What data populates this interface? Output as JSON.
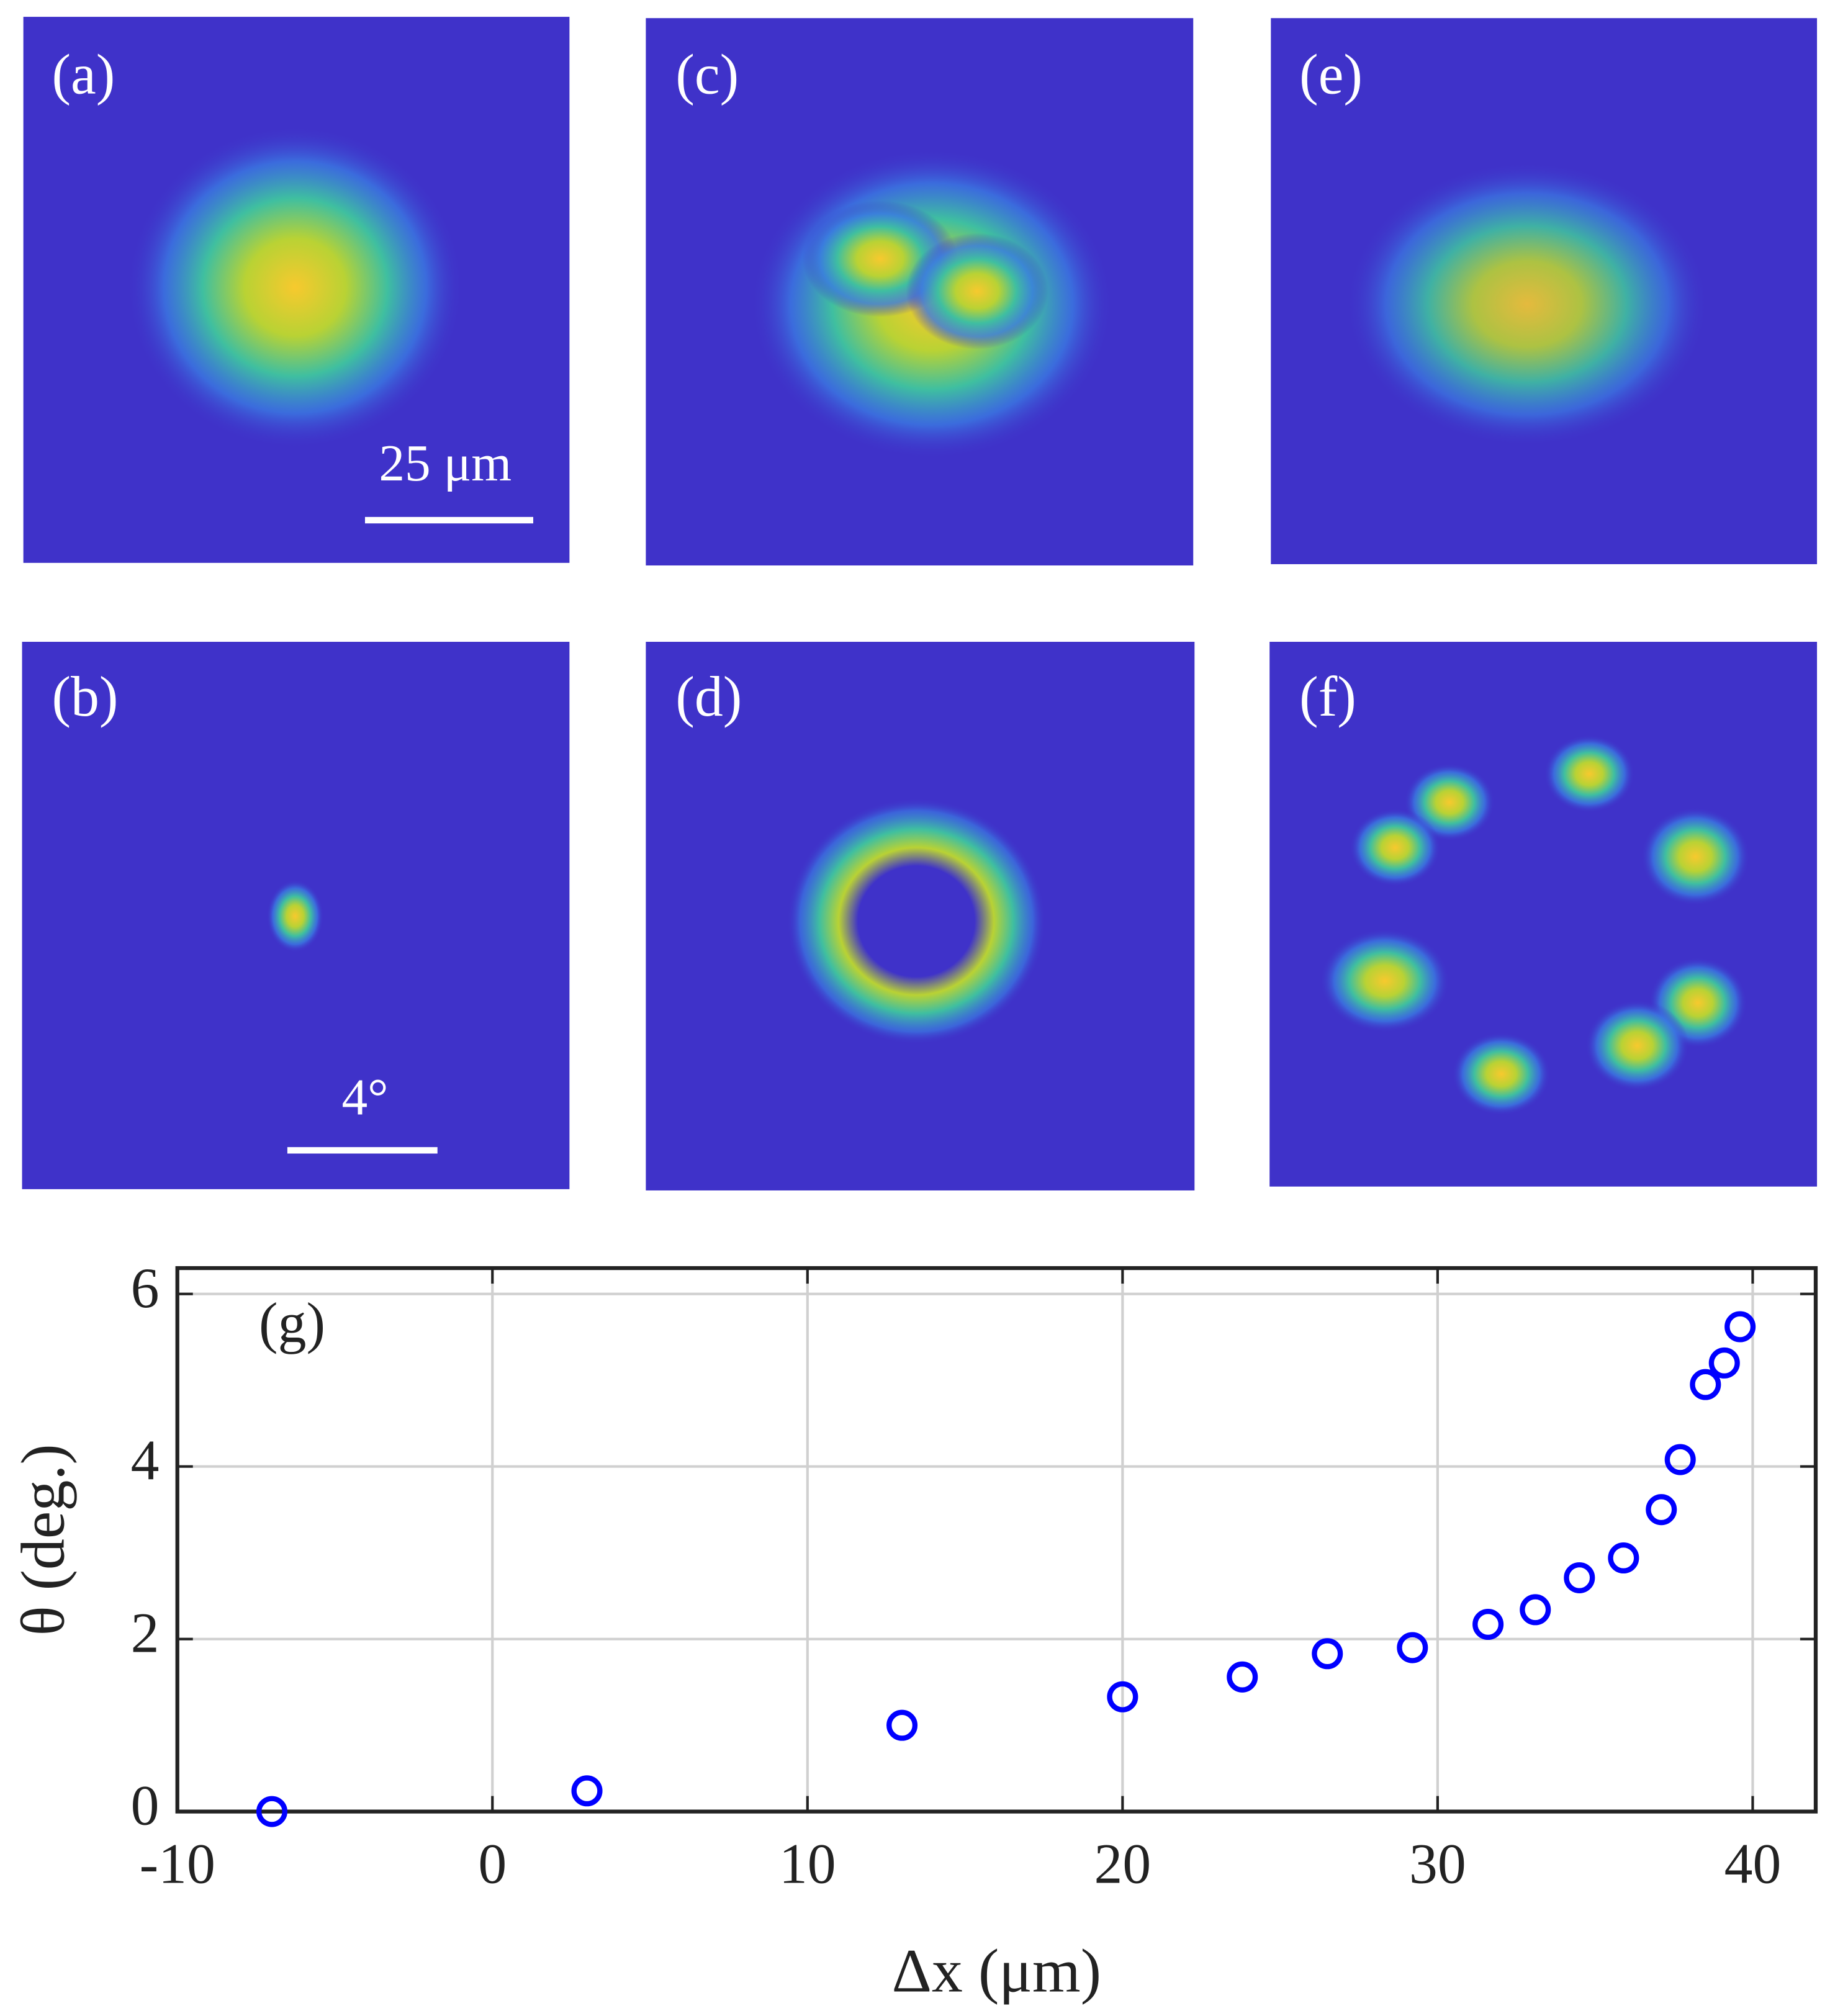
{
  "panels": [
    {
      "label": "(a)"
    },
    {
      "label": "(b)"
    },
    {
      "label": "(c)"
    },
    {
      "label": "(d)"
    },
    {
      "label": "(e)"
    },
    {
      "label": "(f)"
    }
  ],
  "scale_bars": [
    {
      "label": "25 μm"
    },
    {
      "label": "4°"
    }
  ],
  "chart_data": {
    "type": "scatter",
    "annotation": "(g)",
    "x_label": "Δx (μm)",
    "y_label": "θ (deg.)",
    "x": [
      -7.0,
      3.0,
      13.0,
      20.0,
      23.8,
      26.5,
      29.2,
      31.6,
      33.1,
      34.5,
      35.9,
      37.1,
      37.7,
      38.5,
      39.1,
      39.6
    ],
    "values": [
      0,
      0.24,
      1.0,
      1.33,
      1.56,
      1.83,
      1.9,
      2.17,
      2.34,
      2.71,
      2.94,
      3.5,
      4.08,
      4.95,
      5.2,
      5.62
    ],
    "color": "#0000ff",
    "xlim": [
      -10,
      42
    ],
    "ylim": [
      0,
      6.3
    ],
    "xticks": [
      -10,
      0,
      10,
      20,
      30,
      40
    ],
    "yticks": [
      0,
      2,
      4,
      6
    ],
    "grid": true
  }
}
